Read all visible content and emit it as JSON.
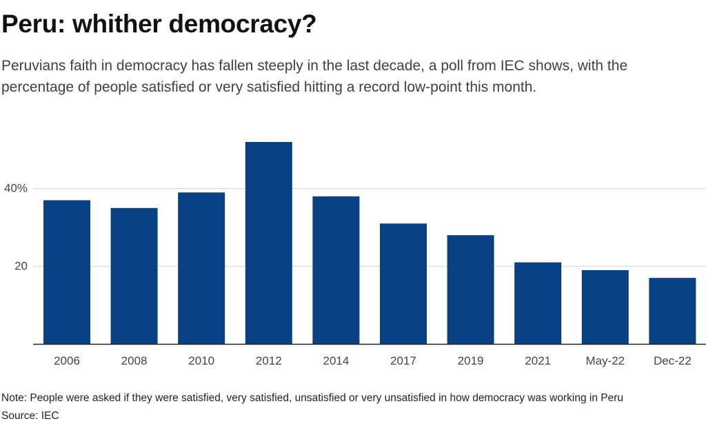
{
  "title": "Peru: whither democracy?",
  "subtitle": "Peruvians faith in democracy has fallen steeply in the last decade, a poll from IEC shows, with the percentage of people satisfied or very satisfied hitting a record low-point this month.",
  "note": "Note: People were asked if they were satisfied, very satisfied, unsatisfied or very unsatisfied in how democracy was working in Peru",
  "source": "Source: IEC",
  "colors": {
    "bar": "#0a4182",
    "grid": "#d0d0d0",
    "axis": "#222222",
    "tick_text": "#444444"
  },
  "chart_data": {
    "type": "bar",
    "title": "Peru: whither democracy?",
    "xlabel": "",
    "ylabel": "",
    "categories": [
      "2006",
      "2008",
      "2010",
      "2012",
      "2014",
      "2017",
      "2019",
      "2021",
      "May-22",
      "Dec-22"
    ],
    "values": [
      37,
      35,
      39,
      52,
      38,
      31,
      28,
      21,
      19,
      17
    ],
    "ylim": [
      0,
      52
    ],
    "yticks": [
      20,
      40
    ],
    "ytick_labels": [
      "20",
      "40%"
    ],
    "grid": true
  }
}
